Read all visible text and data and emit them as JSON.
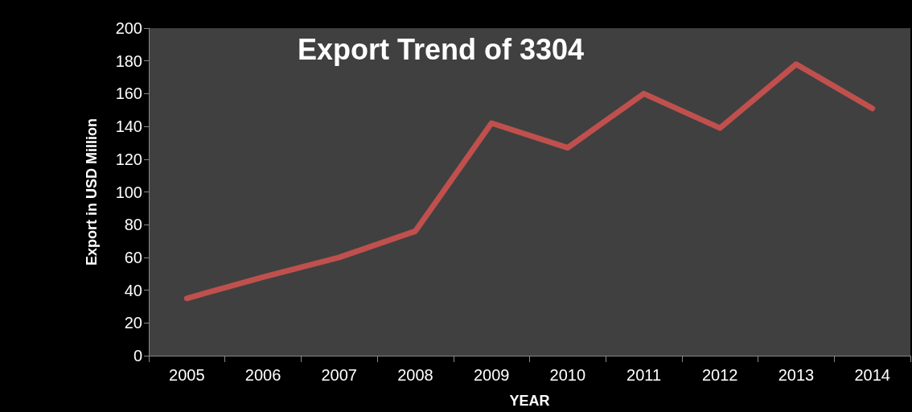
{
  "chart_data": {
    "type": "line",
    "title": "Export Trend of 3304",
    "xlabel": "YEAR",
    "ylabel": "Export in USD Million",
    "categories": [
      "2005",
      "2006",
      "2007",
      "2008",
      "2009",
      "2010",
      "2011",
      "2012",
      "2013",
      "2014"
    ],
    "series": [
      {
        "color": "#c0504d",
        "values": [
          35,
          48,
          60,
          76,
          142,
          127,
          160,
          139,
          178,
          151
        ]
      }
    ],
    "ylim": [
      0,
      200
    ],
    "yticks": [
      0,
      20,
      40,
      60,
      80,
      100,
      120,
      140,
      160,
      180,
      200
    ],
    "grid": false,
    "marker": "none",
    "line_style": "solid"
  }
}
